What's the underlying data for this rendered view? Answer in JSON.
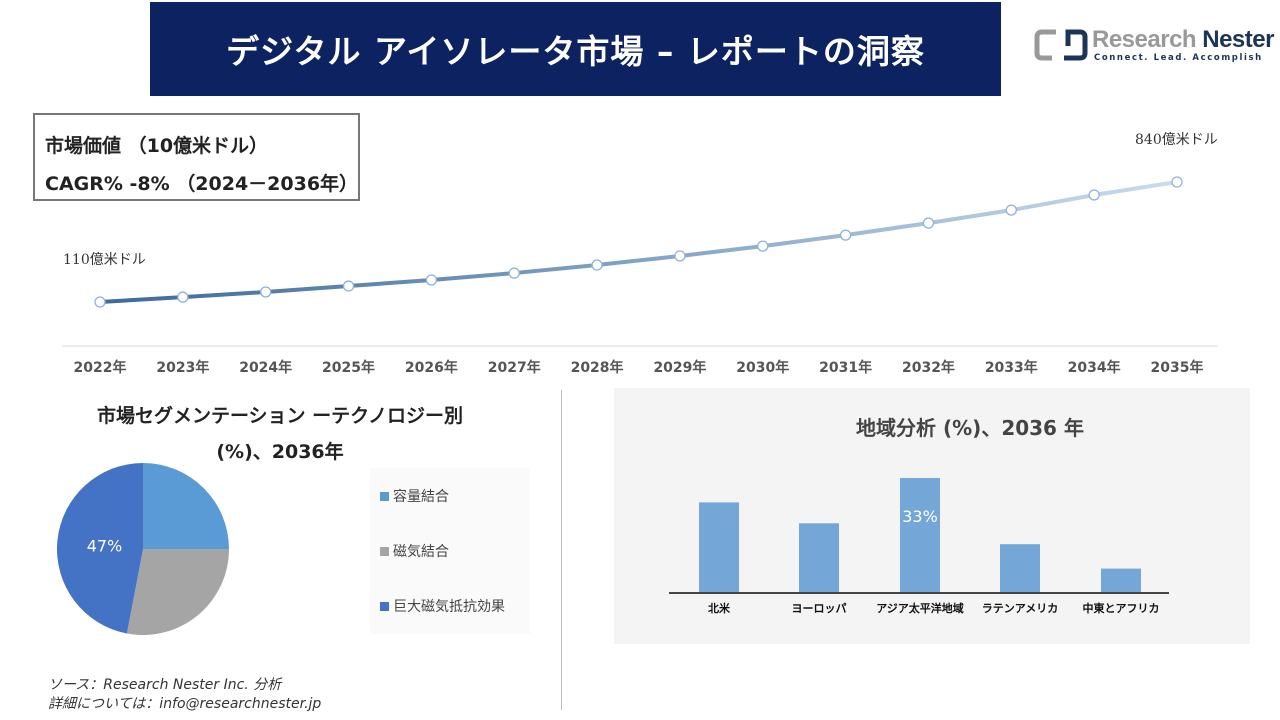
{
  "header": {
    "title": "デジタル アイソレータ市場 – レポートの洞察"
  },
  "logo": {
    "name_light": "Research ",
    "name_dark": "Nester",
    "tagline": "Connect. Lead. Accomplish"
  },
  "infobox": {
    "line1": "市場価値 （10億米ドル）",
    "line2": "CAGR% -8% （2024－2036年）"
  },
  "colors": {
    "header_bg": "#0d2260",
    "line_start": "#3c6a9a",
    "line_end": "#c9dcf0",
    "pie": [
      "#5b9bd5",
      "#a5a5a5",
      "#4472c4"
    ],
    "bar": "#74a7d8"
  },
  "chart_data": [
    {
      "type": "line",
      "x": [
        "2022年",
        "2023年",
        "2024年",
        "2025年",
        "2026年",
        "2027年",
        "2028年",
        "2029年",
        "2030年",
        "2031年",
        "2032年",
        "2033年",
        "2034年",
        "2035年"
      ],
      "values": [
        110,
        140,
        171,
        207,
        244,
        286,
        335,
        390,
        450,
        517,
        590,
        669,
        761,
        840
      ],
      "annotations": {
        "start": "110億米ドル",
        "end": "840億米ドル"
      },
      "grid": false
    },
    {
      "type": "pie",
      "title": "市場セグメンテーション ーテクノロジー別",
      "subtitle": "(%)、2036年",
      "labels": [
        "容量結合",
        "磁気結合",
        "巨大磁気抵抗効果"
      ],
      "values": [
        25,
        28,
        47
      ],
      "data_labels": [
        "",
        "",
        "47%"
      ],
      "legend": "right"
    },
    {
      "type": "bar",
      "title": "地域分析 (%)、2036 年",
      "categories": [
        "北米",
        "ヨーロッパ",
        "アジア太平洋地域",
        "ラテンアメリカ",
        "中東とアフリカ"
      ],
      "values": [
        26,
        20,
        33,
        14,
        7
      ],
      "data_labels": [
        "",
        "",
        "33%",
        "",
        ""
      ]
    }
  ],
  "source": {
    "line1": "ソース：Research Nester Inc. 分析",
    "line2": "詳細については：info@researchnester.jp"
  }
}
